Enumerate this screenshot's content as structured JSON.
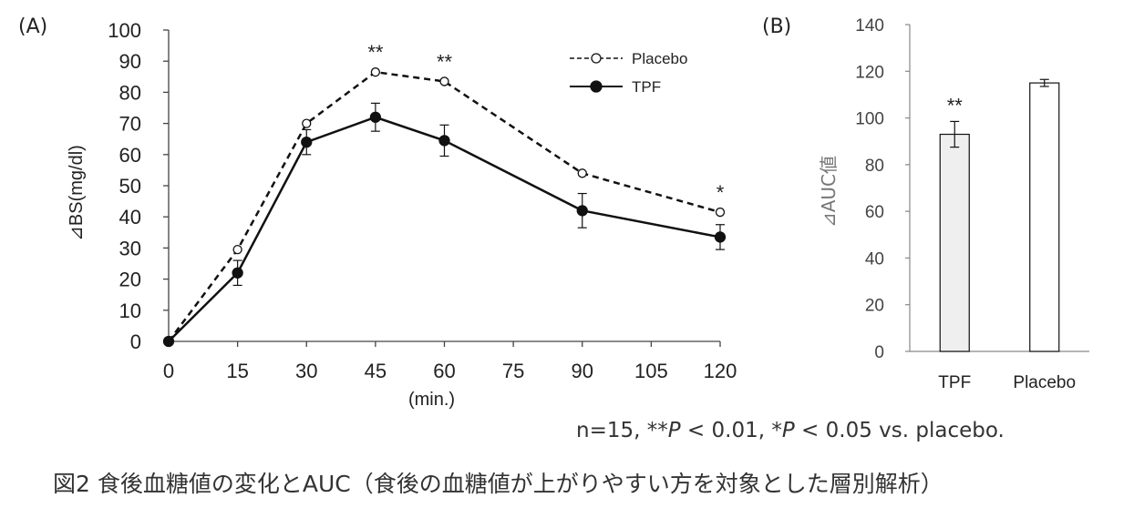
{
  "chart_data": [
    {
      "type": "line",
      "panel_label": "(A)",
      "xlabel": "(min.)",
      "ylabel": "⊿BS(mg/dl)",
      "x": [
        0,
        15,
        30,
        45,
        60,
        90,
        120
      ],
      "xticks": [
        "0",
        "15",
        "30",
        "45",
        "60",
        "75",
        "90",
        "105",
        "120"
      ],
      "xlim": [
        0,
        120
      ],
      "ylim": [
        0,
        100
      ],
      "yticks": [
        "0",
        "10",
        "20",
        "30",
        "40",
        "50",
        "60",
        "70",
        "80",
        "90",
        "100"
      ],
      "series": [
        {
          "name": "Placebo",
          "style": "dashed",
          "marker": "open-circle",
          "values": [
            0,
            29.5,
            70,
            86.5,
            83.5,
            54,
            41.5
          ],
          "errors": [
            0,
            0,
            0,
            0,
            0,
            0,
            0
          ]
        },
        {
          "name": "TPF",
          "style": "solid",
          "marker": "filled-circle",
          "values": [
            0,
            22,
            64,
            72,
            64.5,
            42,
            33.5
          ],
          "errors": [
            0,
            4,
            4,
            4.5,
            5,
            5.5,
            4
          ]
        }
      ],
      "significance": [
        {
          "x": 45,
          "label": "**"
        },
        {
          "x": 60,
          "label": "**"
        },
        {
          "x": 120,
          "label": "*"
        }
      ],
      "legend": [
        "Placebo",
        "TPF"
      ]
    },
    {
      "type": "bar",
      "panel_label": "(B)",
      "ylabel": "⊿AUC値",
      "categories": [
        "TPF",
        "Placebo"
      ],
      "values": [
        93,
        115
      ],
      "errors": [
        5.5,
        1.5
      ],
      "ylim": [
        0,
        140
      ],
      "yticks": [
        "0",
        "20",
        "40",
        "60",
        "80",
        "100",
        "120",
        "140"
      ],
      "bar_colors": [
        "#efefef",
        "#ffffff"
      ],
      "significance": [
        {
          "category": "TPF",
          "label": "**"
        }
      ]
    }
  ],
  "footnote": {
    "prefix": "n=15, **",
    "p1": "P",
    "mid": " < 0.01, *",
    "p2": "P",
    "suffix": " < 0.05 vs. placebo."
  },
  "caption": "図2 食後血糖値の変化とAUC（食後の血糖値が上がりやすい方を対象とした層別解析）"
}
